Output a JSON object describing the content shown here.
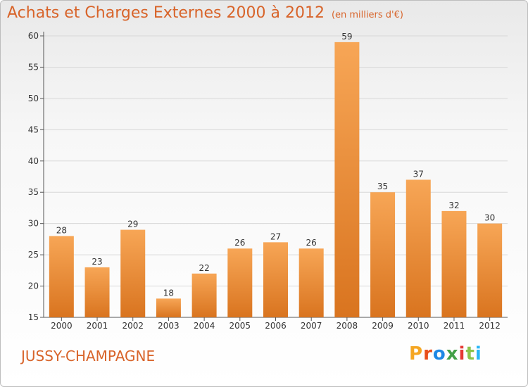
{
  "header": {
    "title": "Achats et Charges Externes 2000 à 2012",
    "unit": "(en milliers d'€)"
  },
  "footer": {
    "location": "JUSSY-CHAMPAGNE",
    "logo": "Proxiti",
    "logo_colors": [
      "#f5a623",
      "#e94e1b",
      "#1e88e5",
      "#43a047",
      "#e53935",
      "#8bc34a",
      "#29b6f6"
    ]
  },
  "colors": {
    "bar_top": "#f7a656",
    "bar_bottom": "#d9741f",
    "text": "#d8642a"
  },
  "chart_data": {
    "type": "bar",
    "categories": [
      "2000",
      "2001",
      "2002",
      "2003",
      "2004",
      "2005",
      "2006",
      "2007",
      "2008",
      "2009",
      "2010",
      "2011",
      "2012"
    ],
    "values": [
      28,
      23,
      29,
      18,
      22,
      26,
      27,
      26,
      59,
      35,
      37,
      32,
      30
    ],
    "ylim": [
      15,
      60
    ],
    "yticks": [
      15,
      20,
      25,
      30,
      35,
      40,
      45,
      50,
      55,
      60
    ],
    "grid": true,
    "data_labels": true
  }
}
